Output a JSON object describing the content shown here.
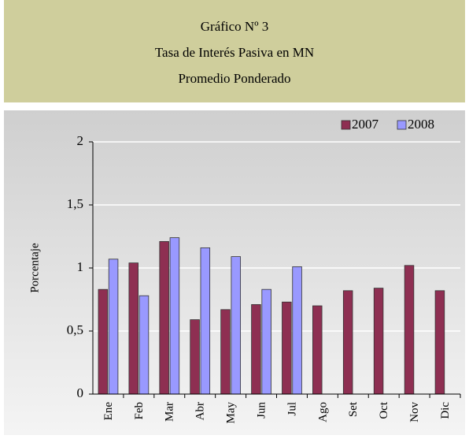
{
  "chart_data": {
    "type": "bar",
    "title_lines": [
      "Gráfico Nº 3",
      "Tasa de Interés Pasiva en MN",
      "Promedio Ponderado"
    ],
    "y_label": "Porcentaje",
    "categories": [
      "Ene",
      "Feb",
      "Mar",
      "Abr",
      "May",
      "Jun",
      "Jul",
      "Ago",
      "Set",
      "Oct",
      "Nov",
      "Dic"
    ],
    "series": [
      {
        "name": "2007",
        "color": "#8e2f52",
        "values": [
          0.83,
          1.04,
          1.21,
          0.59,
          0.67,
          0.71,
          0.73,
          0.7,
          0.82,
          0.84,
          1.02,
          0.82
        ]
      },
      {
        "name": "2008",
        "color": "#9999ff",
        "values": [
          1.07,
          0.78,
          1.24,
          1.16,
          1.09,
          0.83,
          1.01,
          null,
          null,
          null,
          null,
          null
        ]
      }
    ],
    "ylim": [
      0,
      2
    ],
    "yticks": [
      0,
      {
        "value": 0.5,
        "label": "0,5"
      },
      1,
      {
        "value": 1.5,
        "label": "1,5"
      },
      2
    ],
    "grid": true,
    "legend": "top-right"
  }
}
